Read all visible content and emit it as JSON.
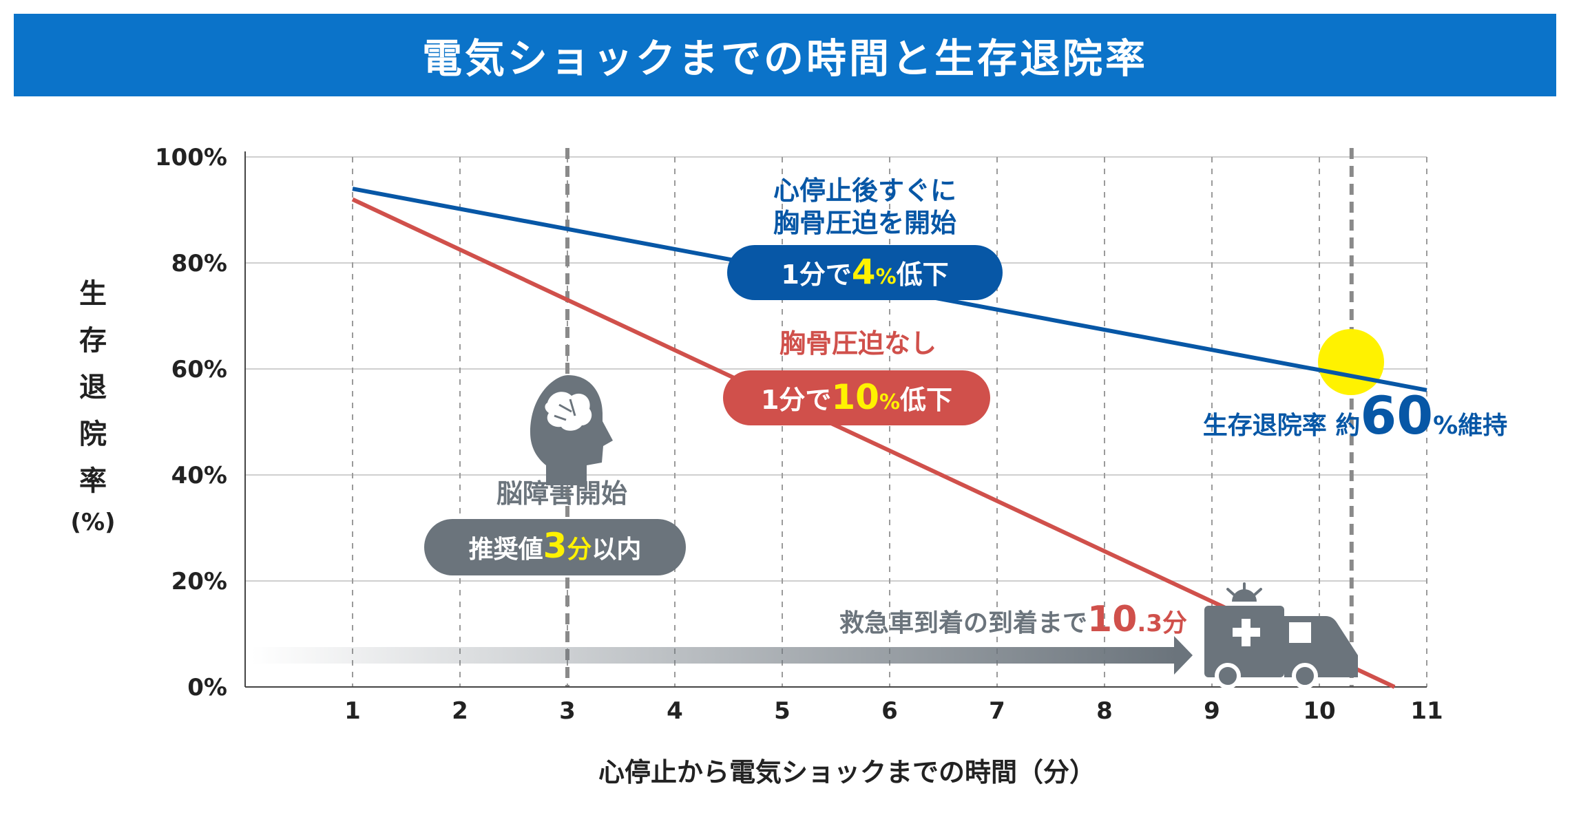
{
  "title": "電気ショックまでの時間と生存退院率",
  "chart_data": {
    "type": "line",
    "xlabel": "心停止から電気ショックまでの時間（分）",
    "ylabel_chars": [
      "生",
      "存",
      "退",
      "院",
      "率"
    ],
    "ylabel_unit": "(%)",
    "x_ticks": [
      1,
      2,
      3,
      4,
      5,
      6,
      7,
      8,
      9,
      10,
      11
    ],
    "y_ticks": [
      "0%",
      "20%",
      "40%",
      "60%",
      "80%",
      "100%"
    ],
    "xlim": [
      0,
      11
    ],
    "ylim": [
      0,
      100
    ],
    "grid": true,
    "series": [
      {
        "name": "心停止後すぐに胸骨圧迫を開始",
        "color": "#0757a6",
        "x": [
          1,
          11
        ],
        "y": [
          94,
          56
        ]
      },
      {
        "name": "胸骨圧迫なし",
        "color": "#d0504b",
        "x": [
          1,
          10.7
        ],
        "y": [
          92,
          0
        ]
      }
    ],
    "vertical_markers": [
      3,
      10.3
    ],
    "callouts": {
      "cpr_title_line1": "心停止後すぐに",
      "cpr_title_line2": "胸骨圧迫を開始",
      "cpr_rate": {
        "pre": "1分で",
        "num": "4",
        "unit": "%",
        "post": "低下"
      },
      "nocpr_title": "胸骨圧迫なし",
      "nocpr_rate": {
        "pre": "1分で",
        "num": "10",
        "unit": "%",
        "post": "低下"
      },
      "brain_title": "脳障害開始",
      "brain_rec": {
        "pre": "推奨値",
        "num": "3",
        "unit": "分",
        "post": "以内"
      },
      "survival": {
        "pre": "生存退院率 約",
        "num": "60",
        "post": "%維持"
      },
      "ambulance": {
        "text": "救急車到着の到着まで",
        "num": "10",
        "dec": ".3",
        "unit": "分"
      }
    },
    "colors": {
      "blue": "#0757a6",
      "red": "#d0504b",
      "gray": "#6b747c",
      "highlight": "#fff200",
      "title_bg": "#0b73c9"
    }
  }
}
